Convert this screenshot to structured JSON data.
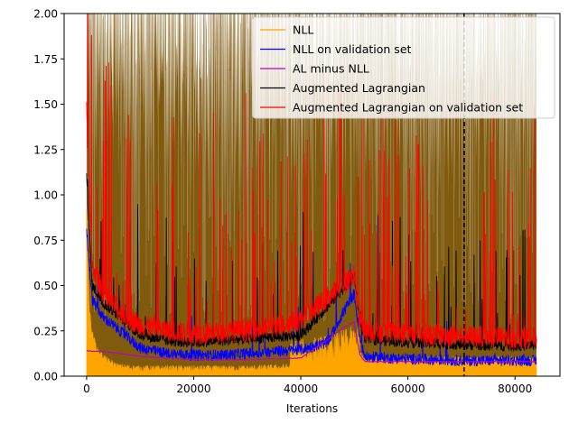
{
  "chart_data": {
    "type": "line",
    "title": "",
    "xlabel": "Iterations",
    "ylabel": "",
    "xlim": [
      -4200,
      88400
    ],
    "ylim": [
      0,
      2.0
    ],
    "x_ticks": [
      0,
      20000,
      40000,
      60000,
      80000
    ],
    "x_tick_labels": [
      "0",
      "20000",
      "40000",
      "60000",
      "80000"
    ],
    "y_ticks": [
      0.0,
      0.25,
      0.5,
      0.75,
      1.0,
      1.25,
      1.5,
      1.75,
      2.0
    ],
    "y_tick_labels": [
      "0.00",
      "0.25",
      "0.50",
      "0.75",
      "1.00",
      "1.25",
      "1.50",
      "1.75",
      "2.00"
    ],
    "grid": false,
    "legend_position": "top-right",
    "vline": {
      "x": 70500,
      "style": "dashed",
      "color": "#000000"
    },
    "series": [
      {
        "name": "NLL",
        "color": "#ffa500",
        "points": [
          [
            0,
            0.9
          ],
          [
            500,
            0.35
          ],
          [
            1000,
            0.22
          ],
          [
            2000,
            0.12
          ],
          [
            4000,
            0.06
          ],
          [
            6000,
            0.03
          ],
          [
            10000,
            0.02
          ],
          [
            20000,
            0.02
          ],
          [
            30000,
            0.02
          ],
          [
            40000,
            0.03
          ],
          [
            45000,
            0.05
          ],
          [
            48000,
            0.08
          ],
          [
            50000,
            0.1
          ],
          [
            51000,
            0.1
          ],
          [
            52000,
            0.07
          ],
          [
            60000,
            0.07
          ],
          [
            70000,
            0.07
          ],
          [
            80000,
            0.07
          ],
          [
            84000,
            0.07
          ]
        ]
      },
      {
        "name": "NLL on validation set",
        "color": "#0000ff",
        "points": [
          [
            0,
            0.8
          ],
          [
            1000,
            0.42
          ],
          [
            3000,
            0.32
          ],
          [
            6000,
            0.25
          ],
          [
            10000,
            0.15
          ],
          [
            15000,
            0.12
          ],
          [
            20000,
            0.11
          ],
          [
            25000,
            0.11
          ],
          [
            30000,
            0.12
          ],
          [
            35000,
            0.13
          ],
          [
            40000,
            0.14
          ],
          [
            45000,
            0.18
          ],
          [
            48000,
            0.35
          ],
          [
            50000,
            0.45
          ],
          [
            51000,
            0.2
          ],
          [
            52000,
            0.1
          ],
          [
            60000,
            0.09
          ],
          [
            70000,
            0.08
          ],
          [
            80000,
            0.08
          ],
          [
            84000,
            0.08
          ]
        ]
      },
      {
        "name": "AL minus NLL",
        "color": "#bf00bf",
        "points": [
          [
            0,
            0.14
          ],
          [
            5000,
            0.13
          ],
          [
            10000,
            0.11
          ],
          [
            20000,
            0.09
          ],
          [
            30000,
            0.09
          ],
          [
            40000,
            0.1
          ],
          [
            45000,
            0.2
          ],
          [
            48000,
            0.27
          ],
          [
            50000,
            0.3
          ],
          [
            51000,
            0.12
          ],
          [
            52000,
            0.08
          ],
          [
            60000,
            0.08
          ],
          [
            70000,
            0.08
          ],
          [
            80000,
            0.08
          ],
          [
            84000,
            0.08
          ]
        ]
      },
      {
        "name": "Augmented Lagrangian",
        "color": "#000000",
        "points": [
          [
            0,
            1.1
          ],
          [
            1000,
            0.5
          ],
          [
            3000,
            0.4
          ],
          [
            6000,
            0.33
          ],
          [
            10000,
            0.22
          ],
          [
            15000,
            0.19
          ],
          [
            20000,
            0.18
          ],
          [
            25000,
            0.19
          ],
          [
            30000,
            0.2
          ],
          [
            35000,
            0.21
          ],
          [
            40000,
            0.22
          ],
          [
            45000,
            0.38
          ],
          [
            48000,
            0.48
          ],
          [
            50000,
            0.55
          ],
          [
            51000,
            0.3
          ],
          [
            52000,
            0.2
          ],
          [
            60000,
            0.18
          ],
          [
            70000,
            0.17
          ],
          [
            80000,
            0.16
          ],
          [
            84000,
            0.17
          ]
        ]
      },
      {
        "name": "Augmented Lagrangian on validation set",
        "color": "#ff0000",
        "points": [
          [
            0,
            1.45
          ],
          [
            1000,
            0.6
          ],
          [
            3000,
            0.45
          ],
          [
            6000,
            0.35
          ],
          [
            10000,
            0.27
          ],
          [
            15000,
            0.24
          ],
          [
            20000,
            0.22
          ],
          [
            25000,
            0.23
          ],
          [
            30000,
            0.24
          ],
          [
            35000,
            0.26
          ],
          [
            40000,
            0.3
          ],
          [
            45000,
            0.42
          ],
          [
            48000,
            0.5
          ],
          [
            50000,
            0.55
          ],
          [
            51000,
            0.3
          ],
          [
            52000,
            0.24
          ],
          [
            60000,
            0.22
          ],
          [
            70000,
            0.21
          ],
          [
            80000,
            0.2
          ],
          [
            84000,
            0.2
          ]
        ]
      }
    ]
  }
}
